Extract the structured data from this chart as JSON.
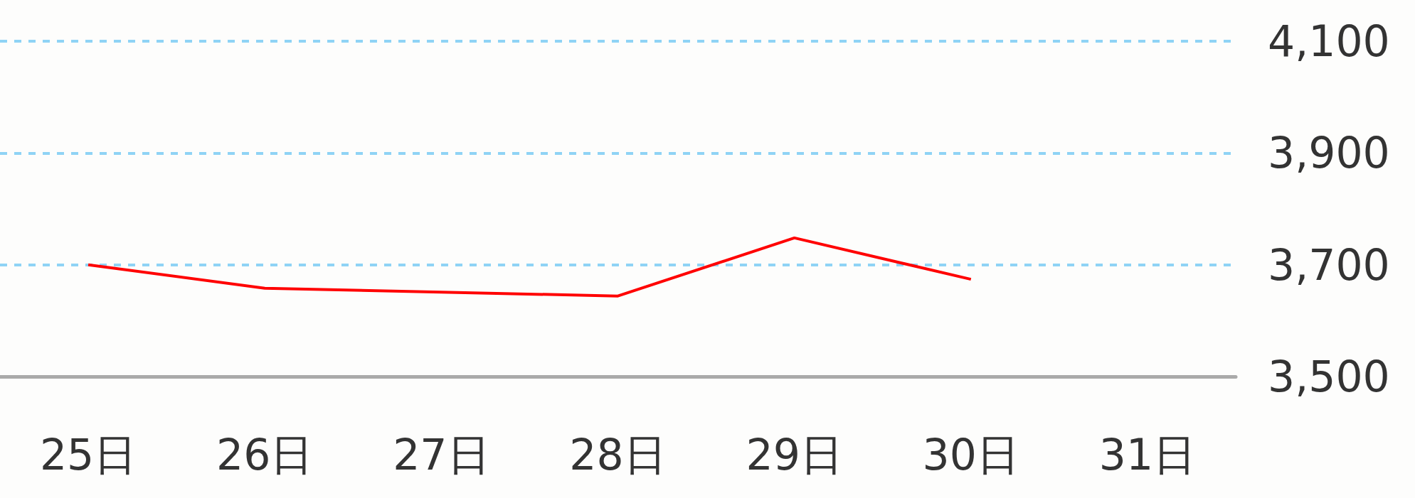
{
  "chart_data": {
    "type": "line",
    "categories": [
      "25日",
      "26日",
      "27日",
      "28日",
      "29日",
      "30日",
      "31日"
    ],
    "series": [
      {
        "color": "#ff0000",
        "values": [
          3700,
          3658,
          3651,
          3644,
          3748,
          3674,
          null
        ]
      }
    ],
    "ylim": [
      3500,
      4100
    ],
    "yticks": [
      {
        "value": 3500,
        "label": "3,500"
      },
      {
        "value": 3700,
        "label": "3,700"
      },
      {
        "value": 3900,
        "label": "3,900"
      },
      {
        "value": 4100,
        "label": "4,100"
      }
    ],
    "grid": "y",
    "marker": "none",
    "line_style": "solid"
  }
}
